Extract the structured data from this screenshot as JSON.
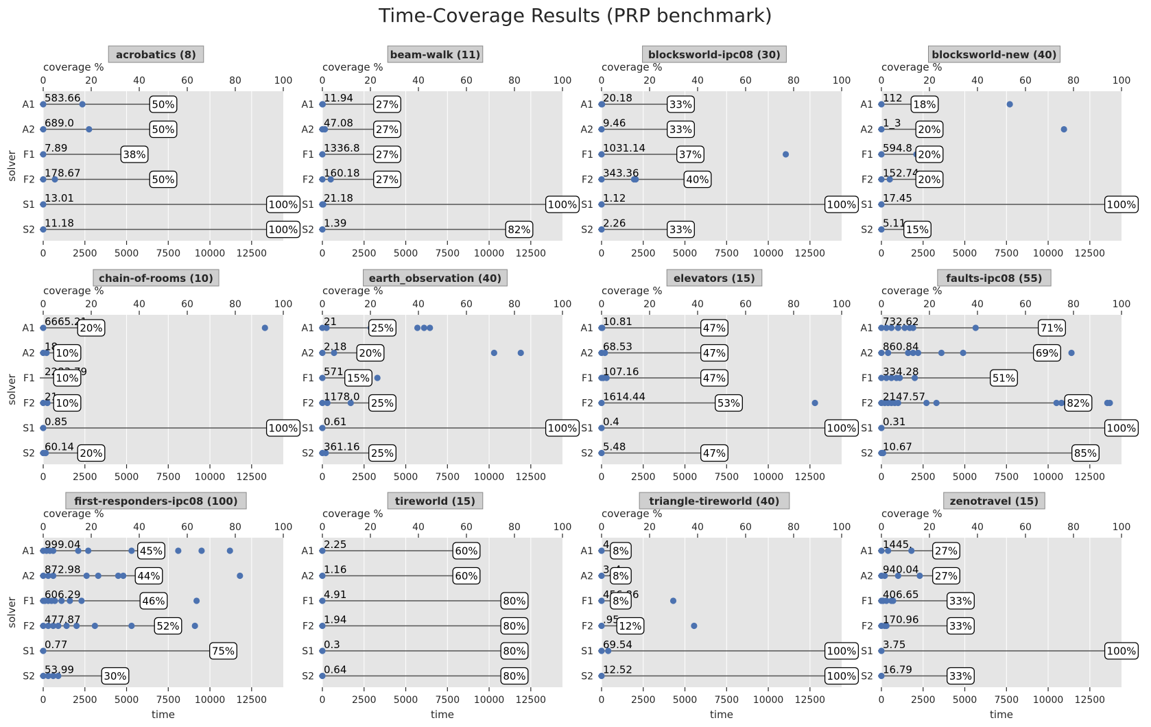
{
  "title": "Time-Coverage Results (PRP benchmark)",
  "colors": {
    "panel_bg": "#e5e5e5",
    "grid": "#ffffff",
    "point": "#4c72b0",
    "bar": "#555555",
    "title_box": "#cfcfcf"
  },
  "chart_data": {
    "type": "scatter",
    "title": "Time-Coverage Results (PRP benchmark)",
    "xlabel": "time",
    "x2label": "coverage %",
    "ylabel": "solver",
    "xlim": [
      0,
      14400
    ],
    "x2lim": [
      0,
      100
    ],
    "xticks": [
      0,
      2500,
      5000,
      7500,
      10000,
      12500
    ],
    "x2ticks": [
      0,
      20,
      40,
      60,
      80,
      100
    ],
    "solvers": [
      "A1",
      "A2",
      "F1",
      "F2",
      "S1",
      "S2"
    ],
    "grid": true,
    "panels": [
      {
        "title": "acrobatics (8)",
        "coverage": [
          "50%",
          "50%",
          "38%",
          "50%",
          "100%",
          "100%"
        ],
        "coverage_values": [
          50,
          50,
          38,
          50,
          100,
          100
        ],
        "labels": [
          "583.66",
          "689.0",
          "7.89",
          "178.67",
          "13.01",
          "11.18"
        ],
        "times": [
          [
            0,
            2350
          ],
          [
            0,
            2750
          ],
          [
            0
          ],
          [
            0,
            700
          ],
          [
            0
          ],
          [
            0
          ]
        ]
      },
      {
        "title": "beam-walk (11)",
        "coverage": [
          "27%",
          "27%",
          "27%",
          "27%",
          "100%",
          "82%"
        ],
        "coverage_values": [
          27,
          27,
          27,
          27,
          100,
          82
        ],
        "labels": [
          "11.94",
          "47.08",
          "1336.8",
          "160.18",
          "21.18",
          "1.39"
        ],
        "times": [
          [
            0,
            20
          ],
          [
            0,
            150
          ],
          [
            0
          ],
          [
            0,
            500
          ],
          [
            0,
            50
          ],
          [
            0
          ]
        ]
      },
      {
        "title": "blocksworld-ipc08 (30)",
        "coverage": [
          "33%",
          "33%",
          "37%",
          "40%",
          "100%",
          "33%"
        ],
        "coverage_values": [
          33,
          33,
          37,
          40,
          100,
          33
        ],
        "labels": [
          "20.18",
          "9.46",
          "1031.14",
          "343.36",
          "1.12",
          "2.26"
        ],
        "times": [
          [
            0,
            30
          ],
          [
            0
          ],
          [
            0,
            11050
          ],
          [
            0,
            1950,
            2050
          ],
          [
            0
          ],
          [
            0
          ]
        ]
      },
      {
        "title": "blocksworld-new (40)",
        "coverage": [
          "18%",
          "20%",
          "20%",
          "20%",
          "100%",
          "15%"
        ],
        "coverage_values": [
          18,
          20,
          20,
          20,
          100,
          15
        ],
        "labels": [
          "112",
          "1_3",
          "594.8",
          "152.74",
          "17.45",
          "5.11"
        ],
        "times": [
          [
            0,
            7700
          ],
          [
            0,
            10950
          ],
          [
            0,
            2100
          ],
          [
            0,
            500
          ],
          [
            0
          ],
          [
            0
          ]
        ]
      },
      {
        "title": "chain-of-rooms (10)",
        "coverage": [
          "20%",
          "10%",
          "10%",
          "10%",
          "100%",
          "20%"
        ],
        "coverage_values": [
          20,
          10,
          10,
          10,
          100,
          20
        ],
        "labels": [
          "6665.21",
          "18",
          "2283.79",
          "21",
          "0.85",
          "60.14"
        ],
        "times": [
          [
            0,
            13300
          ],
          [
            0,
            200
          ],
          [],
          [
            0,
            250
          ],
          [
            0
          ],
          [
            0,
            150
          ]
        ]
      },
      {
        "title": "earth_observation (40)",
        "coverage": [
          "25%",
          "20%",
          "15%",
          "25%",
          "100%",
          "25%"
        ],
        "coverage_values": [
          25,
          20,
          15,
          25,
          100,
          25
        ],
        "labels": [
          "21",
          "2.18",
          "571",
          "1178.0",
          "0.61",
          "361.16"
        ],
        "times": [
          [
            0,
            250,
            2900,
            5700,
            6100,
            6450
          ],
          [
            0,
            700,
            10300,
            11900
          ],
          [
            0,
            3300
          ],
          [
            0,
            300,
            1700,
            3000
          ],
          [
            0
          ],
          [
            0,
            200
          ]
        ]
      },
      {
        "title": "elevators (15)",
        "coverage": [
          "47%",
          "47%",
          "47%",
          "53%",
          "100%",
          "47%"
        ],
        "coverage_values": [
          47,
          47,
          47,
          53,
          100,
          47
        ],
        "labels": [
          "10.81",
          "68.53",
          "107.16",
          "1614.44",
          "0.4",
          "5.48"
        ],
        "times": [
          [
            0,
            40
          ],
          [
            0,
            200
          ],
          [
            0,
            100,
            300
          ],
          [
            0,
            12800
          ],
          [
            0
          ],
          [
            0
          ]
        ]
      },
      {
        "title": "faults-ipc08 (55)",
        "coverage": [
          "71%",
          "69%",
          "51%",
          "82%",
          "100%",
          "85%"
        ],
        "coverage_values": [
          71,
          69,
          51,
          82,
          100,
          85
        ],
        "labels": [
          "732.62",
          "860.84",
          "334.28",
          "2147.57",
          "0.31",
          "10.67"
        ],
        "times": [
          [
            0,
            300,
            600,
            1000,
            1400,
            1700,
            1900,
            5650
          ],
          [
            0,
            400,
            1600,
            1900,
            2200,
            3600,
            4900,
            11400
          ],
          [
            0,
            300,
            600,
            900,
            1100,
            2000
          ],
          [
            0,
            200,
            400,
            600,
            800,
            1000,
            2700,
            3300,
            10500,
            10800,
            11100,
            13550,
            13700
          ],
          [
            0
          ],
          [
            0,
            100
          ]
        ]
      },
      {
        "title": "first-responders-ipc08 (100)",
        "coverage": [
          "45%",
          "44%",
          "46%",
          "52%",
          "75%",
          "30%"
        ],
        "coverage_values": [
          45,
          44,
          46,
          52,
          75,
          30
        ],
        "labels": [
          "999.04",
          "872.98",
          "606.29",
          "477.87",
          "0.77",
          "53.99"
        ],
        "times": [
          [
            0,
            200,
            400,
            600,
            2100,
            2700,
            5300,
            8100,
            9500,
            11200
          ],
          [
            0,
            300,
            600,
            2600,
            3300,
            4500,
            4800,
            11800
          ],
          [
            0,
            100,
            300,
            500,
            700,
            1100,
            1600,
            2300,
            9200
          ],
          [
            0,
            300,
            600,
            900,
            1400,
            2000,
            3100,
            5300,
            9100
          ],
          [
            0
          ],
          [
            0,
            300,
            600,
            900
          ]
        ]
      },
      {
        "title": "tireworld (15)",
        "coverage": [
          "60%",
          "60%",
          "80%",
          "80%",
          "80%",
          "80%"
        ],
        "coverage_values": [
          60,
          60,
          80,
          80,
          80,
          80
        ],
        "labels": [
          "2.25",
          "1.16",
          "4.91",
          "1.94",
          "0.3",
          "0.64"
        ],
        "times": [
          [
            0
          ],
          [
            0
          ],
          [
            0
          ],
          [
            0
          ],
          [
            0
          ],
          [
            0
          ]
        ]
      },
      {
        "title": "triangle-tireworld (40)",
        "coverage": [
          "8%",
          "8%",
          "8%",
          "12%",
          "100%",
          "100%"
        ],
        "coverage_values": [
          8,
          8,
          8,
          12,
          100,
          100
        ],
        "labels": [
          "4",
          "3_4",
          "456.86",
          ".95",
          "69.54",
          "12.52"
        ],
        "times": [
          [
            0
          ],
          [
            0
          ],
          [
            0,
            4300
          ],
          [
            0,
            5550
          ],
          [
            0,
            400
          ],
          [
            0
          ]
        ]
      },
      {
        "title": "zenotravel (15)",
        "coverage": [
          "27%",
          "27%",
          "33%",
          "33%",
          "100%",
          "33%"
        ],
        "coverage_values": [
          27,
          27,
          33,
          33,
          100,
          33
        ],
        "labels": [
          "1445.",
          "940.04",
          "406.65",
          "170.96",
          "3.75",
          "16.79"
        ],
        "times": [
          [
            0,
            400,
            1800
          ],
          [
            0,
            200,
            1000,
            2300
          ],
          [
            0,
            100,
            300,
            600,
            700
          ],
          [
            0,
            200,
            300
          ],
          [
            0
          ],
          [
            0
          ]
        ]
      }
    ]
  }
}
